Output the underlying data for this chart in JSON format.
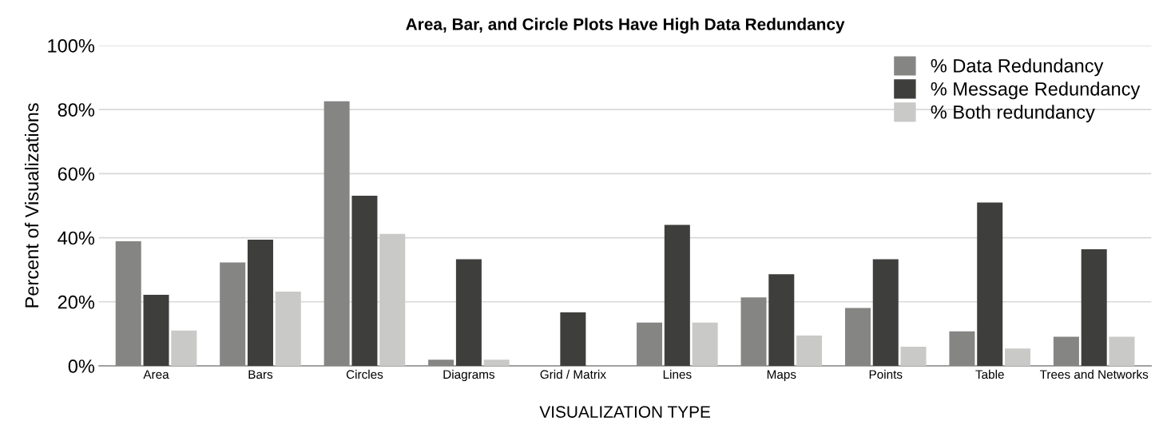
{
  "chart_data": {
    "type": "bar",
    "title": "Area, Bar, and Circle Plots Have High Data Redundancy",
    "xlabel": "VISUALIZATION TYPE",
    "ylabel": "Percent of Visualizations",
    "categories": [
      "Area",
      "Bars",
      "Circles",
      "Diagrams",
      "Grid / Matrix",
      "Lines",
      "Maps",
      "Points",
      "Table",
      "Trees and Networks"
    ],
    "series": [
      {
        "name": "% Data Redundancy",
        "color": "#858684",
        "values": [
          38.9,
          32.3,
          82.6,
          1.9,
          null,
          13.5,
          21.4,
          18.1,
          10.8,
          9.1
        ]
      },
      {
        "name": "% Message Redundancy",
        "color": "#3e3e3c",
        "values": [
          22.2,
          39.4,
          53.1,
          33.3,
          16.7,
          44.0,
          28.6,
          33.3,
          51.0,
          36.4
        ]
      },
      {
        "name": "% Both redundancy",
        "color": "#c9c9c7",
        "values": [
          11.0,
          23.2,
          41.2,
          1.9,
          null,
          13.5,
          9.5,
          6.0,
          5.4,
          9.1
        ]
      }
    ],
    "ylim": [
      0,
      100
    ],
    "yticks": [
      {
        "value": 0,
        "label": "0%"
      },
      {
        "value": 20,
        "label": "20%"
      },
      {
        "value": 40,
        "label": "40%"
      },
      {
        "value": 60,
        "label": "60%"
      },
      {
        "value": 80,
        "label": "80%"
      },
      {
        "value": 100,
        "label": "100%"
      }
    ],
    "grid": "y",
    "legend": "top right"
  }
}
